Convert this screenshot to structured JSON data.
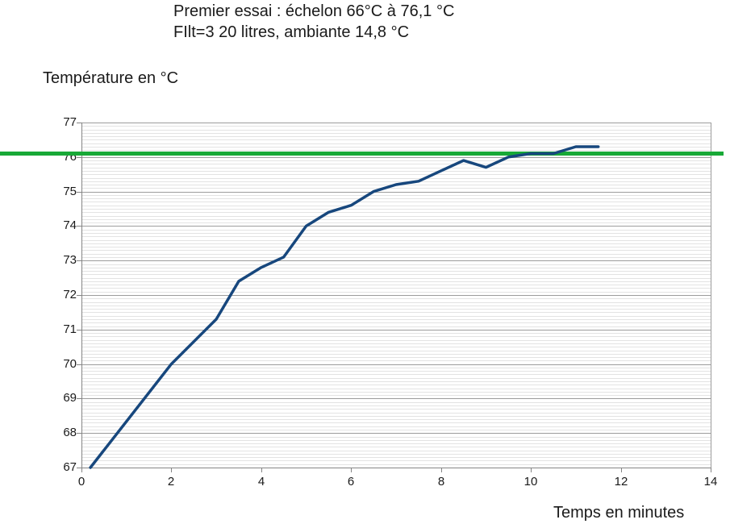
{
  "chart_data": {
    "type": "line",
    "title": "Premier essai : échelon 66°C à 76,1 °C",
    "subtitle": "FIlt=3 20 litres, ambiante 14,8 °C",
    "ylabel": "Température en °C",
    "xlabel": "Temps en minutes",
    "xlim": [
      0,
      14
    ],
    "ylim": [
      67,
      77
    ],
    "x_ticks": [
      0,
      2,
      4,
      6,
      8,
      10,
      12,
      14
    ],
    "y_ticks": [
      67,
      68,
      69,
      70,
      71,
      72,
      73,
      74,
      75,
      76,
      77
    ],
    "y_minor_step": 0.1,
    "grid": "horizontal major + minor, no vertical gridlines",
    "legend": "none",
    "series": [
      {
        "name": "temperature",
        "color": "#17477d",
        "points": [
          [
            0.2,
            67.0
          ],
          [
            2,
            70.0
          ],
          [
            3,
            71.3
          ],
          [
            3.5,
            72.4
          ],
          [
            4,
            72.8
          ],
          [
            4.5,
            73.1
          ],
          [
            5,
            74.0
          ],
          [
            5.5,
            74.4
          ],
          [
            6,
            74.6
          ],
          [
            6.5,
            75.0
          ],
          [
            7,
            75.2
          ],
          [
            7.5,
            75.3
          ],
          [
            8,
            75.6
          ],
          [
            8.5,
            75.9
          ],
          [
            9,
            75.7
          ],
          [
            9.5,
            76.0
          ],
          [
            10,
            76.1
          ],
          [
            10.5,
            76.1
          ],
          [
            11,
            76.3
          ],
          [
            11.5,
            76.3
          ]
        ]
      }
    ],
    "reference_line": {
      "value": 76.1,
      "color": "#18a937"
    }
  },
  "colors": {
    "grid_major": "#9c9c9c",
    "grid_minor": "#e3e3e3",
    "axis": "#858585",
    "text": "#1a1a1a"
  }
}
